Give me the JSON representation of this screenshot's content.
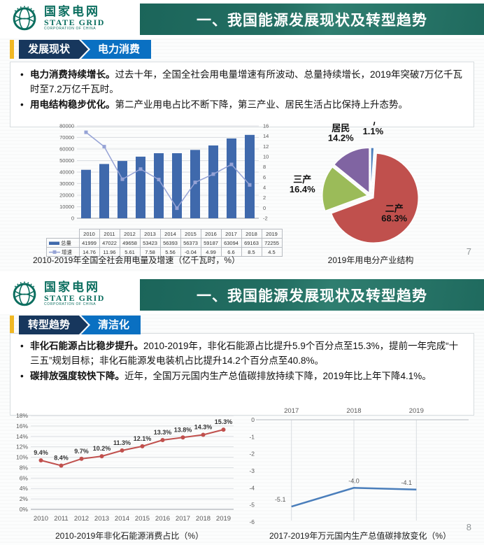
{
  "slides": [
    {
      "logo": {
        "cn": "国家电网",
        "en": "STATE GRID",
        "sub": "CORPORATION OF CHINA"
      },
      "title": "一、我国能源发展现状及转型趋势",
      "tag_primary": "发展现状",
      "tag_secondary": "电力消费",
      "bullets": [
        {
          "lead": "电力消费持续增长。",
          "text": "过去十年，全国全社会用电量增速有所波动、总量持续增长，2019年突破7万亿千瓦时至7.2万亿千瓦时。"
        },
        {
          "lead": "用电结构稳步优化。",
          "text": "第二产业用电占比不断下降，第三产业、居民生活占比保持上升态势。"
        }
      ],
      "captions": [
        "2010-2019年全国全社会用电量及增速（亿千瓦时，%）",
        "2019年用电分产业结构"
      ],
      "page": "7"
    },
    {
      "logo": {
        "cn": "国家电网",
        "en": "STATE GRID",
        "sub": "CORPORATION OF CHINA"
      },
      "title": "一、我国能源发展现状及转型趋势",
      "tag_primary": "转型趋势",
      "tag_secondary": "清洁化",
      "bullets": [
        {
          "lead": "非化石能源占比稳步提升。",
          "text": "2010-2019年，非化石能源占比提升5.9个百分点至15.3%，提前一年完成“十三五”规划目标；非化石能源发电装机占比提升14.2个百分点至40.8%。"
        },
        {
          "lead": "碳排放强度较快下降。",
          "text": "近年，全国万元国内生产总值碳排放持续下降，2019年比上年下降4.1%。"
        }
      ],
      "captions": [
        "2010-2019年非化石能源消费占比（%）",
        "2017-2019年万元国内生产总值碳排放变化（%）"
      ],
      "page": "8"
    }
  ],
  "chart_data": [
    {
      "id": "electricity-consumption-combo",
      "type": "bar",
      "title": "2010-2019年全国全社会用电量及增速（亿千瓦时，%）",
      "categories": [
        "2010",
        "2011",
        "2012",
        "2013",
        "2014",
        "2015",
        "2016",
        "2017",
        "2018",
        "2019"
      ],
      "series": [
        {
          "name": "总量",
          "kind": "bar",
          "axis": "left",
          "color": "#3f69ac",
          "values": [
            41999,
            47022,
            49658,
            53423,
            56393,
            56373,
            59187,
            63094,
            69163,
            72255
          ]
        },
        {
          "name": "增速",
          "kind": "line",
          "axis": "right",
          "color": "#96a3d6",
          "values": [
            14.76,
            11.96,
            5.61,
            7.58,
            5.56,
            -0.04,
            4.99,
            6.6,
            8.5,
            4.5
          ]
        }
      ],
      "left_axis": {
        "min": 0,
        "max": 80000,
        "step": 10000
      },
      "right_axis": {
        "min": -2,
        "max": 16,
        "step": 2
      },
      "legend_position": "table-bottom",
      "grid": true
    },
    {
      "id": "industry-structure-pie",
      "type": "pie",
      "title": "2019年用电分产业结构",
      "slices": [
        {
          "label": "一产",
          "value": 1.1,
          "pct": "1.1%",
          "color": "#4f81bd"
        },
        {
          "label": "二产",
          "value": 68.3,
          "pct": "68.3%",
          "color": "#c0504d"
        },
        {
          "label": "三产",
          "value": 16.4,
          "pct": "16.4%",
          "color": "#9bbb59"
        },
        {
          "label": "居民",
          "value": 14.2,
          "pct": "14.2%",
          "color": "#8064a2"
        }
      ]
    },
    {
      "id": "non-fossil-share-line",
      "type": "line",
      "title": "2010-2019年非化石能源消费占比（%）",
      "categories": [
        "2010",
        "2011",
        "2012",
        "2013",
        "2014",
        "2015",
        "2016",
        "2017",
        "2018",
        "2019"
      ],
      "values": [
        9.4,
        8.4,
        9.7,
        10.2,
        11.3,
        12.1,
        13.3,
        13.8,
        14.3,
        15.3
      ],
      "point_labels": [
        "9.4%",
        "8.4%",
        "9.7%",
        "10.2%",
        "11.3%",
        "12.1%",
        "13.3%",
        "13.8%",
        "14.3%",
        "15.3%"
      ],
      "color": "#c0504d",
      "ylim": [
        0,
        18
      ],
      "ytick_step": 2,
      "ytick_suffix": "%",
      "grid": true
    },
    {
      "id": "carbon-intensity-change-line",
      "type": "line",
      "title": "2017-2019年万元国内生产总值碳排放变化（%）",
      "categories": [
        "2017",
        "2018",
        "2019"
      ],
      "values": [
        -5.1,
        -4.0,
        -4.1
      ],
      "point_labels": [
        "-5.1",
        "-4.0",
        "-4.1"
      ],
      "color": "#4a7ebb",
      "ylim": [
        -6,
        0
      ],
      "ytick_step": 1,
      "x_labels_position": "top",
      "grid": true
    }
  ]
}
